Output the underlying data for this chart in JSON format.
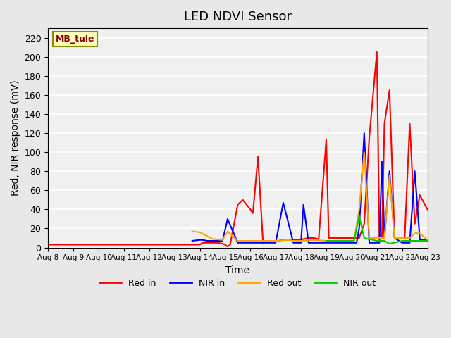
{
  "title": "LED NDVI Sensor",
  "xlabel": "Time",
  "ylabel": "Red, NIR response (mV)",
  "annotation": "MB_tule",
  "ylim": [
    0,
    230
  ],
  "yticks": [
    0,
    20,
    40,
    60,
    80,
    100,
    120,
    140,
    160,
    180,
    200,
    220
  ],
  "x_labels": [
    "Aug 8",
    "Aug 9",
    "Aug 10",
    "Aug 11",
    "Aug 12",
    "Aug 13",
    "Aug 14",
    "Aug 15",
    "Aug 16",
    "Aug 17",
    "Aug 18",
    "Aug 19",
    "Aug 20",
    "Aug 21",
    "Aug 22",
    "Aug 23"
  ],
  "series": {
    "Red in": {
      "color": "#ff0000",
      "x": [
        0,
        1,
        2,
        3,
        4,
        5,
        5.3,
        5.5,
        5.7,
        6.0,
        6.1,
        6.3,
        6.5,
        6.7,
        6.9,
        7.0,
        7.1,
        7.2,
        7.5,
        7.7,
        8.0,
        8.1,
        8.3,
        8.5,
        8.7,
        9.0,
        9.1,
        9.3,
        9.5,
        9.7,
        10.0,
        10.1,
        10.3,
        10.5,
        10.7,
        11.0,
        11.1,
        11.3,
        11.5,
        11.7,
        12.0,
        12.1,
        12.2,
        12.3,
        12.5,
        12.7,
        13.0,
        13.1,
        13.2,
        13.3,
        13.5,
        13.7,
        14.0,
        14.1,
        14.3,
        14.5,
        14.7,
        15.0
      ],
      "y": [
        3,
        3,
        3,
        3,
        3,
        3,
        3,
        3,
        3,
        3,
        5,
        5,
        5,
        5,
        4,
        3,
        1,
        3,
        45,
        50,
        40,
        36,
        95,
        5,
        7,
        7,
        7,
        8,
        8,
        8,
        8,
        9,
        10,
        10,
        9,
        113,
        10,
        10,
        10,
        10,
        10,
        10,
        10,
        10,
        25,
        115,
        205,
        10,
        10,
        130,
        165,
        10,
        10,
        10,
        130,
        25,
        55,
        40
      ]
    },
    "NIR in": {
      "color": "#0000ff",
      "x": [
        5.7,
        6.0,
        6.1,
        6.3,
        6.5,
        6.9,
        7.1,
        7.5,
        8.0,
        9.0,
        9.3,
        9.7,
        10.0,
        10.1,
        10.3,
        11.0,
        11.1,
        11.5,
        11.7,
        12.0,
        12.1,
        12.2,
        12.3,
        12.5,
        12.7,
        13.0,
        13.1,
        13.2,
        13.3,
        13.5,
        13.7,
        14.0,
        14.1,
        14.3,
        14.5,
        14.7,
        15.0
      ],
      "y": [
        7,
        8,
        8,
        7,
        7,
        7,
        30,
        5,
        5,
        5,
        47,
        5,
        5,
        45,
        5,
        5,
        5,
        5,
        5,
        5,
        5,
        5,
        20,
        120,
        5,
        5,
        5,
        90,
        10,
        80,
        10,
        5,
        5,
        5,
        80,
        8,
        8
      ]
    },
    "Red out": {
      "color": "#ffa500",
      "x": [
        5.7,
        6.0,
        6.5,
        6.9,
        7.1,
        7.5,
        8.0,
        9.0,
        9.5,
        9.7,
        10.0,
        10.5,
        11.0,
        11.2,
        11.5,
        11.7,
        12.0,
        12.1,
        12.3,
        12.5,
        12.7,
        13.0,
        13.1,
        13.3,
        13.5,
        13.7,
        14.0,
        14.1,
        14.3,
        14.5,
        14.7,
        15.0
      ],
      "y": [
        17,
        16,
        9,
        8,
        17,
        7,
        7,
        7,
        8,
        7,
        7,
        8,
        7,
        7,
        7,
        7,
        7,
        7,
        40,
        100,
        10,
        10,
        10,
        10,
        75,
        10,
        10,
        10,
        10,
        15,
        15,
        8
      ]
    },
    "NIR out": {
      "color": "#00cc00",
      "x": [
        11.0,
        11.5,
        11.7,
        12.0,
        12.1,
        12.3,
        12.5,
        13.0,
        13.1,
        13.3,
        13.5,
        14.0,
        14.1,
        14.3,
        14.5,
        15.0
      ],
      "y": [
        7,
        7,
        7,
        7,
        7,
        33,
        10,
        7,
        7,
        7,
        4,
        7,
        7,
        7,
        7,
        7
      ]
    }
  },
  "background_color": "#e8e8e8",
  "plot_bg_color": "#f0f0f0",
  "legend_items": [
    "Red in",
    "NIR in",
    "Red out",
    "NIR out"
  ],
  "legend_colors": [
    "#ff0000",
    "#0000ff",
    "#ffa500",
    "#00cc00"
  ]
}
